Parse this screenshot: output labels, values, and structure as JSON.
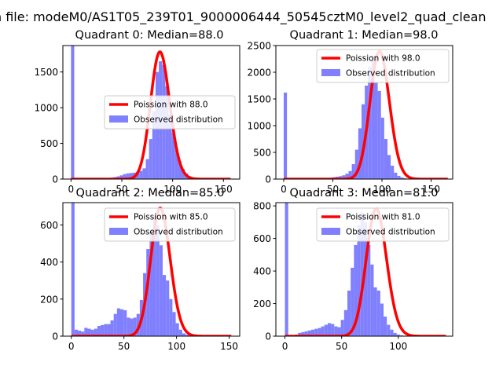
{
  "suptitle": "n file: modeM0/AS1T05_239T01_9000006444_50545cztM0_level2_quad_clean",
  "colors": {
    "bars": "#8080ff",
    "fit": "#ff0000",
    "axes": "#000000"
  },
  "chart_data": [
    {
      "type": "bar",
      "title": "Quadrant 0: Median=88.0",
      "median": 88.0,
      "xlim": [
        -8,
        166
      ],
      "ylim": [
        0,
        1870
      ],
      "xticks": [
        0,
        50,
        100,
        150
      ],
      "yticks": [
        0,
        500,
        1000,
        1500
      ],
      "legend_loc": "center-right",
      "legend": [
        "Poission with 88.0",
        "Observed distribution"
      ],
      "hist": {
        "x0": 0,
        "bin_width": 3.2,
        "counts": [
          1900,
          0,
          0,
          0,
          0,
          0,
          0,
          0,
          0,
          5,
          10,
          15,
          20,
          28,
          38,
          52,
          70,
          80,
          85,
          90,
          100,
          115,
          150,
          280,
          560,
          950,
          1500,
          1650,
          1600,
          1300,
          900,
          650,
          420,
          250,
          140,
          80,
          40,
          20,
          8,
          4,
          2,
          0,
          0,
          0,
          0,
          0,
          0,
          0,
          0,
          0
        ]
      },
      "fit": {
        "lambda": 88.0,
        "scale": 1780,
        "x_range": [
          0,
          157
        ]
      }
    },
    {
      "type": "bar",
      "title": "Quadrant 1: Median=98.0",
      "median": 98.0,
      "xlim": [
        -8,
        172
      ],
      "ylim": [
        0,
        2500
      ],
      "xticks": [
        0,
        50,
        100,
        150
      ],
      "yticks": [
        0,
        500,
        1000,
        1500,
        2000,
        2500
      ],
      "legend_loc": "upper-right",
      "legend": [
        "Poission with 98.0",
        "Observed distribution"
      ],
      "hist": {
        "x0": 0,
        "bin_width": 3.3,
        "counts": [
          1620,
          0,
          0,
          0,
          0,
          0,
          0,
          0,
          0,
          0,
          0,
          5,
          10,
          15,
          25,
          35,
          45,
          55,
          70,
          100,
          150,
          280,
          550,
          950,
          1400,
          1750,
          2100,
          2300,
          1800,
          1650,
          1150,
          750,
          450,
          250,
          120,
          60,
          30,
          15,
          5,
          2,
          0,
          0,
          0,
          0,
          0,
          0,
          0,
          0,
          0,
          0
        ]
      },
      "fit": {
        "lambda": 98.0,
        "scale": 2390,
        "x_range": [
          0,
          167
        ]
      }
    },
    {
      "type": "bar",
      "title": "Quadrant 2: Median=85.0",
      "median": 85.0,
      "xlim": [
        -8,
        160
      ],
      "ylim": [
        0,
        720
      ],
      "xticks": [
        0,
        50,
        100,
        150
      ],
      "yticks": [
        0,
        200,
        400,
        600
      ],
      "legend_loc": "upper-right",
      "legend": [
        "Poission with 85.0",
        "Observed distribution"
      ],
      "hist": {
        "x0": 0,
        "bin_width": 3.1,
        "counts": [
          720,
          35,
          30,
          25,
          45,
          40,
          35,
          40,
          55,
          60,
          65,
          65,
          85,
          120,
          150,
          145,
          140,
          100,
          95,
          100,
          120,
          195,
          340,
          470,
          560,
          650,
          600,
          490,
          330,
          300,
          200,
          130,
          70,
          35,
          15,
          8,
          4,
          2,
          0,
          0,
          0,
          0,
          0,
          0,
          0,
          0,
          0,
          0,
          0,
          0
        ]
      },
      "fit": {
        "lambda": 85.0,
        "scale": 690,
        "x_range": [
          0,
          152
        ]
      }
    },
    {
      "type": "bar",
      "title": "Quadrant 3: Median=81.0",
      "median": 81.0,
      "xlim": [
        -8,
        148
      ],
      "ylim": [
        0,
        820
      ],
      "xticks": [
        0,
        50,
        100
      ],
      "yticks": [
        0,
        200,
        400,
        600,
        800
      ],
      "legend_loc": "upper-right",
      "legend": [
        "Poission with 81.0",
        "Observed distribution"
      ],
      "hist": {
        "x0": 0,
        "bin_width": 2.9,
        "counts": [
          820,
          0,
          5,
          10,
          20,
          25,
          30,
          35,
          40,
          45,
          50,
          60,
          70,
          80,
          75,
          60,
          55,
          100,
          160,
          280,
          420,
          560,
          680,
          760,
          700,
          560,
          440,
          300,
          280,
          200,
          120,
          70,
          40,
          20,
          10,
          5,
          2,
          0,
          0,
          0,
          0,
          0,
          0,
          0,
          0,
          0,
          0,
          0,
          0,
          0
        ]
      },
      "fit": {
        "lambda": 81.0,
        "scale": 780,
        "x_range": [
          0,
          142
        ]
      }
    }
  ]
}
